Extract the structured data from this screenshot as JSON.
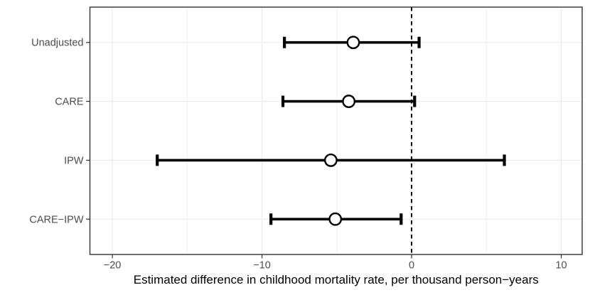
{
  "chart_data": {
    "type": "errorbar",
    "subtype": "forest-plot",
    "orientation": "horizontal",
    "title": "",
    "xlabel": "Estimated difference in childhood mortality rate, per thousand person−years",
    "ylabel": "",
    "categories": [
      "Unadjusted",
      "CARE",
      "IPW",
      "CARE−IPW"
    ],
    "estimates": [
      -3.9,
      -4.2,
      -5.4,
      -5.1
    ],
    "ci_lower": [
      -8.5,
      -8.6,
      -17.0,
      -9.4
    ],
    "ci_upper": [
      0.5,
      0.2,
      6.2,
      -0.7
    ],
    "reference_line_x": 0,
    "reference_line_style": "dashed",
    "xlim": [
      -21.5,
      11.4
    ],
    "x_major_ticks": [
      {
        "value": -20,
        "label": "−20"
      },
      {
        "value": -10,
        "label": "−10"
      },
      {
        "value": 0,
        "label": "0"
      },
      {
        "value": 10,
        "label": "10"
      }
    ],
    "x_minor_ticks": [
      -15,
      -5,
      5
    ],
    "grid": "major and minor vertical, major horizontal per category",
    "legend": "none",
    "marker": {
      "shape": "open-circle",
      "fill": "#ffffff",
      "stroke": "#000000"
    },
    "colors": {
      "errorbar": "#000000",
      "marker_fill": "#ffffff",
      "marker_stroke": "#000000",
      "grid_major": "#ebebeb",
      "grid_minor": "#f0f0f0",
      "panel_border": "#333333",
      "tick_mark": "#333333",
      "tick_label": "#4d4d4d",
      "axis_title": "#000000",
      "reference_line": "#000000",
      "panel_background": "#ffffff"
    }
  }
}
